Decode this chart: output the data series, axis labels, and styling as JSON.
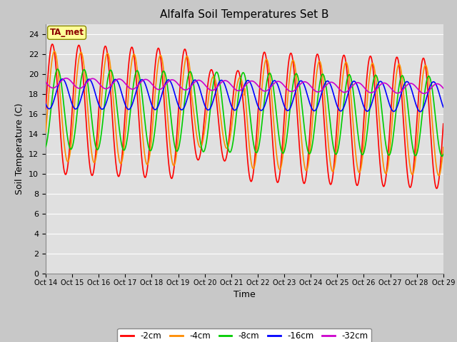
{
  "title": "Alfalfa Soil Temperatures Set B",
  "xlabel": "Time",
  "ylabel": "Soil Temperature (C)",
  "ylim": [
    0,
    25
  ],
  "yticks": [
    0,
    2,
    4,
    6,
    8,
    10,
    12,
    14,
    16,
    18,
    20,
    22,
    24
  ],
  "x_tick_labels": [
    "Oct 14",
    "Oct 15",
    "Oct 16",
    "Oct 17",
    "Oct 18",
    "Oct 19",
    "Oct 20",
    "Oct 21",
    "Oct 22",
    "Oct 23",
    "Oct 24",
    "Oct 25",
    "Oct 26",
    "Oct 27",
    "Oct 28",
    "Oct 29"
  ],
  "annotation_text": "TA_met",
  "annotation_box_color": "#FFFF99",
  "annotation_text_color": "#8B0000",
  "colors": {
    "-2cm": "#FF0000",
    "-4cm": "#FF8C00",
    "-8cm": "#00CC00",
    "-16cm": "#0000FF",
    "-32cm": "#CC00CC"
  },
  "line_width": 1.2,
  "background_color": "#C8C8C8",
  "plot_bg_color": "#E0E0E0",
  "grid_color": "#FFFFFF",
  "figsize": [
    6.4,
    4.8
  ],
  "dpi": 100
}
